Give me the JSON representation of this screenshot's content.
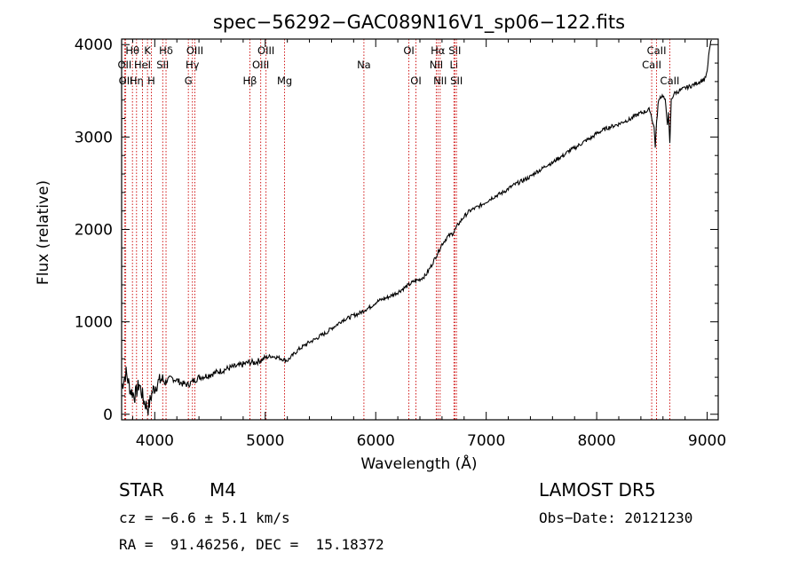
{
  "chart_data": {
    "type": "line",
    "title": "spec−56292−GAC089N16V1_sp06−122.fits",
    "xlabel": "Wavelength (Å)",
    "ylabel": "Flux (relative)",
    "xlim": [
      3700,
      9100
    ],
    "ylim": [
      -60,
      4060
    ],
    "grid": false,
    "x_ticks": [
      {
        "value": 4000,
        "label": "4000"
      },
      {
        "value": 5000,
        "label": "5000"
      },
      {
        "value": 6000,
        "label": "6000"
      },
      {
        "value": 7000,
        "label": "7000"
      },
      {
        "value": 8000,
        "label": "8000"
      },
      {
        "value": 9000,
        "label": "9000"
      }
    ],
    "y_ticks": [
      {
        "value": 0,
        "label": "0"
      },
      {
        "value": 1000,
        "label": "1000"
      },
      {
        "value": 2000,
        "label": "2000"
      },
      {
        "value": 3000,
        "label": "3000"
      },
      {
        "value": 4000,
        "label": "4000"
      }
    ],
    "series": [
      {
        "x": [
          3700,
          3740,
          3780,
          3820,
          3860,
          3900,
          3940,
          3980,
          4020,
          4060,
          4100,
          4150,
          4200,
          4250,
          4300,
          4350,
          4400,
          4450,
          4500,
          4550,
          4600,
          4650,
          4700,
          4750,
          4800,
          4850,
          4900,
          4950,
          5000,
          5050,
          5100,
          5150,
          5200,
          5250,
          5300,
          5350,
          5400,
          5450,
          5500,
          5550,
          5600,
          5650,
          5700,
          5750,
          5800,
          5850,
          5900,
          5950,
          6000,
          6050,
          6100,
          6150,
          6200,
          6250,
          6300,
          6350,
          6400,
          6450,
          6500,
          6550,
          6600,
          6650,
          6700,
          6750,
          6800,
          6850,
          6900,
          6950,
          7000,
          7050,
          7100,
          7150,
          7200,
          7250,
          7300,
          7350,
          7400,
          7450,
          7500,
          7550,
          7600,
          7650,
          7700,
          7750,
          7800,
          7850,
          7900,
          7950,
          8000,
          8050,
          8100,
          8150,
          8200,
          8250,
          8300,
          8350,
          8400,
          8450,
          8480,
          8500,
          8520,
          8530,
          8542,
          8555,
          8570,
          8600,
          8620,
          8640,
          8650,
          8662,
          8675,
          8700,
          8750,
          8800,
          8850,
          8900,
          8950,
          8980,
          9000,
          9020,
          9040
        ],
        "y": [
          300,
          450,
          260,
          200,
          330,
          150,
          60,
          250,
          330,
          380,
          360,
          390,
          370,
          330,
          320,
          360,
          400,
          410,
          430,
          450,
          470,
          490,
          510,
          520,
          540,
          560,
          560,
          580,
          610,
          630,
          620,
          600,
          580,
          640,
          700,
          740,
          780,
          810,
          850,
          880,
          930,
          970,
          1020,
          1040,
          1070,
          1090,
          1130,
          1160,
          1210,
          1240,
          1260,
          1290,
          1320,
          1360,
          1400,
          1440,
          1460,
          1500,
          1600,
          1720,
          1840,
          1920,
          1960,
          2060,
          2140,
          2200,
          2230,
          2260,
          2300,
          2340,
          2370,
          2400,
          2440,
          2480,
          2510,
          2540,
          2570,
          2620,
          2650,
          2700,
          2720,
          2770,
          2800,
          2850,
          2880,
          2920,
          2960,
          2990,
          3040,
          3070,
          3100,
          3120,
          3140,
          3170,
          3190,
          3230,
          3260,
          3280,
          3300,
          3200,
          3100,
          2900,
          3150,
          3350,
          3430,
          3450,
          3390,
          3150,
          3250,
          2920,
          3400,
          3470,
          3500,
          3530,
          3550,
          3580,
          3610,
          3630,
          3700,
          3950,
          4050
        ]
      }
    ],
    "lines": [
      {
        "wavelength": 3727,
        "label": "OII",
        "row": 1
      },
      {
        "wavelength": 3737,
        "label": "OII",
        "row": 2
      },
      {
        "wavelength": 3798,
        "label": "Hθ",
        "row": 0
      },
      {
        "wavelength": 3835,
        "label": "Hη",
        "row": 2
      },
      {
        "wavelength": 3889,
        "label": "HeI",
        "row": 1
      },
      {
        "wavelength": 3934,
        "label": "K",
        "row": 0
      },
      {
        "wavelength": 3969,
        "label": "H",
        "row": 2
      },
      {
        "wavelength": 4072,
        "label": "SII",
        "row": 1
      },
      {
        "wavelength": 4102,
        "label": "Hδ",
        "row": 0
      },
      {
        "wavelength": 4304,
        "label": "G",
        "row": 2
      },
      {
        "wavelength": 4341,
        "label": "Hγ",
        "row": 1
      },
      {
        "wavelength": 4363,
        "label": "OIII",
        "row": 0
      },
      {
        "wavelength": 4861,
        "label": "Hβ",
        "row": 2
      },
      {
        "wavelength": 4959,
        "label": "OIII",
        "row": 1
      },
      {
        "wavelength": 5007,
        "label": "OIII",
        "row": 0
      },
      {
        "wavelength": 5175,
        "label": "Mg",
        "row": 2
      },
      {
        "wavelength": 5893,
        "label": "Na",
        "row": 1
      },
      {
        "wavelength": 6300,
        "label": "OI",
        "row": 0
      },
      {
        "wavelength": 6364,
        "label": "OI",
        "row": 2
      },
      {
        "wavelength": 6548,
        "label": "NII",
        "row": 1
      },
      {
        "wavelength": 6563,
        "label": "Hα",
        "row": 0
      },
      {
        "wavelength": 6583,
        "label": "NII",
        "row": 2
      },
      {
        "wavelength": 6708,
        "label": "Li",
        "row": 1
      },
      {
        "wavelength": 6716,
        "label": "SII",
        "row": 0
      },
      {
        "wavelength": 6731,
        "label": "SII",
        "row": 2
      },
      {
        "wavelength": 8498,
        "label": "CaII",
        "row": 1
      },
      {
        "wavelength": 8542,
        "label": "CaII",
        "row": 0
      },
      {
        "wavelength": 8662,
        "label": "CaII",
        "row": 2
      }
    ],
    "colors": {
      "spectrum": "#000000",
      "lines": "#cc0000",
      "axes": "#000000"
    }
  },
  "info": {
    "class_label": "STAR",
    "subclass": "M4",
    "survey": "LAMOST DR5",
    "cz": "cz = −6.6 ± 5.1 km/s",
    "obs_date": "Obs−Date: 20121230",
    "coords": "RA =  91.46256, DEC =  15.18372"
  }
}
